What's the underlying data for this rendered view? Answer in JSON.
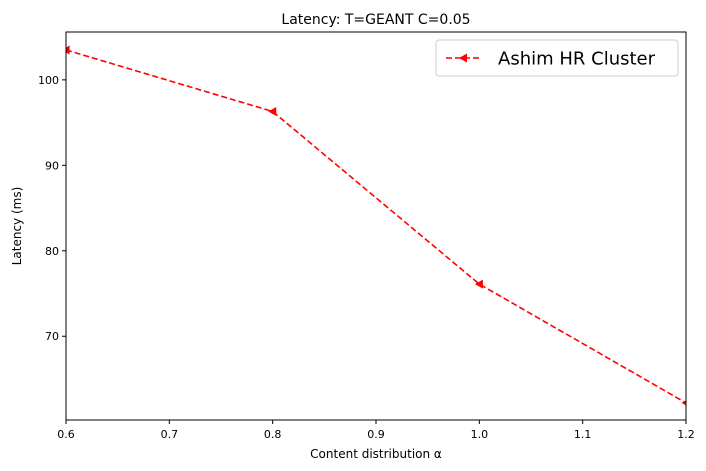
{
  "chart_data": {
    "type": "line",
    "title": "Latency: T=GEANT C=0.05",
    "xlabel": "Content distribution α",
    "ylabel": "Latency (ms)",
    "xlim": [
      0.6,
      1.2
    ],
    "ylim": [
      60.2,
      105.6
    ],
    "xticks": [
      0.6,
      0.7,
      0.8,
      0.9,
      1.0,
      1.1,
      1.2
    ],
    "xtick_labels": [
      "0.6",
      "0.7",
      "0.8",
      "0.9",
      "1.0",
      "1.1",
      "1.2"
    ],
    "yticks": [
      70,
      80,
      90,
      100
    ],
    "ytick_labels": [
      "70",
      "80",
      "90",
      "100"
    ],
    "grid": false,
    "legend_position": "top-right",
    "series": [
      {
        "name": "Ashim HR Cluster",
        "color": "#ff0000",
        "line_style": "dashed",
        "marker": "triangle-left",
        "x": [
          0.6,
          0.8,
          1.0,
          1.2
        ],
        "y": [
          103.5,
          96.3,
          76.1,
          62.2
        ]
      }
    ]
  }
}
